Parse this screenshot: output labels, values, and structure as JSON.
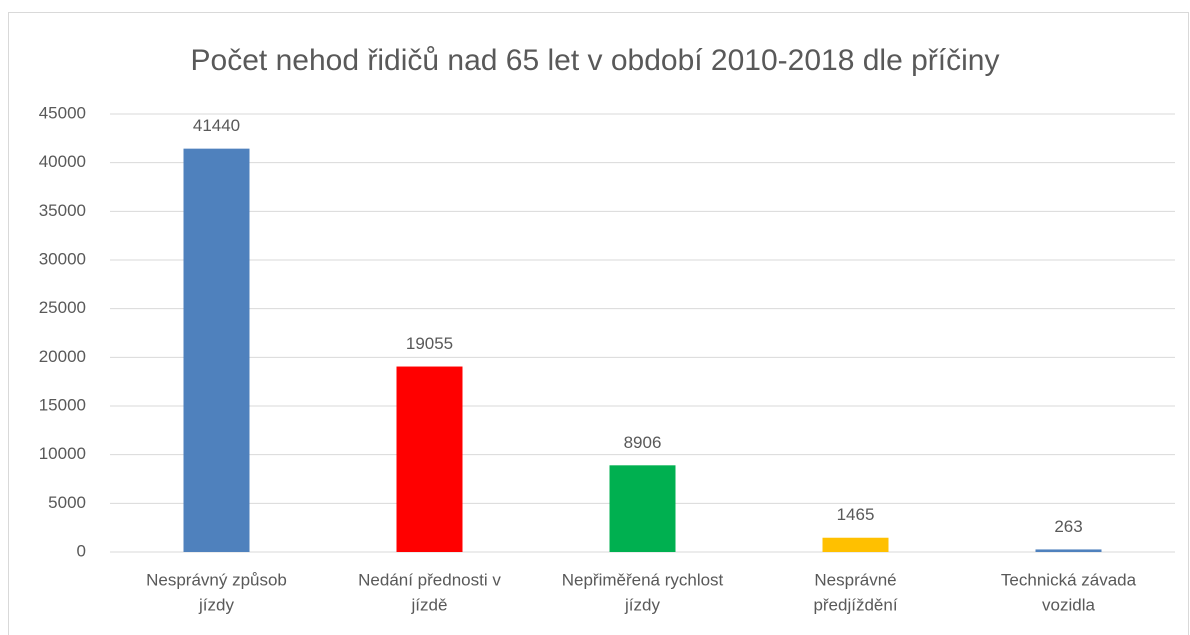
{
  "chart_data": {
    "type": "bar",
    "title": "Počet nehod řidičů nad 65 let v období 2010-2018 dle příčiny",
    "categories": [
      [
        "Nesprávný způsob",
        "jízdy"
      ],
      [
        "Nedání přednosti v",
        "jízdě"
      ],
      [
        "Nepřiměřená rychlost",
        "jízdy"
      ],
      [
        "Nesprávné",
        "předjíždění"
      ],
      [
        "Technická závada",
        "vozidla"
      ]
    ],
    "values": [
      41440,
      19055,
      8906,
      1465,
      263
    ],
    "colors": [
      "#4f81bd",
      "#ff0000",
      "#00b050",
      "#ffc000",
      "#4f81bd"
    ],
    "ylim": [
      0,
      45000
    ],
    "yticks": [
      0,
      5000,
      10000,
      15000,
      20000,
      25000,
      30000,
      35000,
      40000,
      45000
    ],
    "grid": true
  }
}
